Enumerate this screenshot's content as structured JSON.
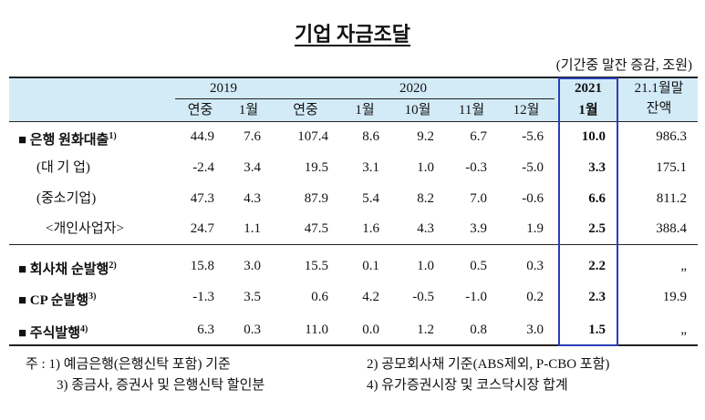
{
  "title": "기업 자금조달",
  "unit": "(기간중 말잔 증감, 조원)",
  "header": {
    "years": [
      "2019",
      "2020",
      "2021"
    ],
    "balance": [
      "21.1월말",
      "잔액"
    ],
    "periods": [
      "연중",
      "1월",
      "연중",
      "1월",
      "10월",
      "11월",
      "12월",
      "1월"
    ]
  },
  "table": {
    "rows": [
      {
        "label": "■ 은행 원화대출",
        "note": "1)",
        "values": [
          "44.9",
          "7.6",
          "107.4",
          "8.6",
          "9.2",
          "6.7",
          "-5.6",
          "10.0",
          "986.3"
        ]
      },
      {
        "label": "(대 기 업)",
        "values": [
          "-2.4",
          "3.4",
          "19.5",
          "3.1",
          "1.0",
          "-0.3",
          "-5.0",
          "3.3",
          "175.1"
        ]
      },
      {
        "label": "(중소기업)",
        "values": [
          "47.3",
          "4.3",
          "87.9",
          "5.4",
          "8.2",
          "7.0",
          "-0.6",
          "6.6",
          "811.2"
        ]
      },
      {
        "label": "<개인사업자>",
        "values": [
          "24.7",
          "1.1",
          "47.5",
          "1.6",
          "4.3",
          "3.9",
          "1.9",
          "2.5",
          "388.4"
        ]
      },
      {
        "label": "■ 회사채 순발행",
        "note": "2)",
        "values": [
          "15.8",
          "3.0",
          "15.5",
          "0.1",
          "1.0",
          "0.5",
          "0.3",
          "2.2",
          "„"
        ]
      },
      {
        "label": "■ CP 순발행",
        "note": "3)",
        "values": [
          "-1.3",
          "3.5",
          "0.6",
          "4.2",
          "-0.5",
          "-1.0",
          "0.2",
          "2.3",
          "19.9"
        ]
      },
      {
        "label": "■ 주식발행",
        "note": "4)",
        "values": [
          "6.3",
          "0.3",
          "11.0",
          "0.0",
          "1.2",
          "0.8",
          "3.0",
          "1.5",
          "„"
        ]
      }
    ]
  },
  "notes": [
    "주 : 1) 예금은행(은행신탁 포함) 기준",
    "2) 공모회사채 기준(ABS제외, P-CBO 포함)",
    "3) 종금사, 증권사 및 은행신탁 할인분",
    "4) 유가증권시장 및 코스닥시장 합계"
  ]
}
